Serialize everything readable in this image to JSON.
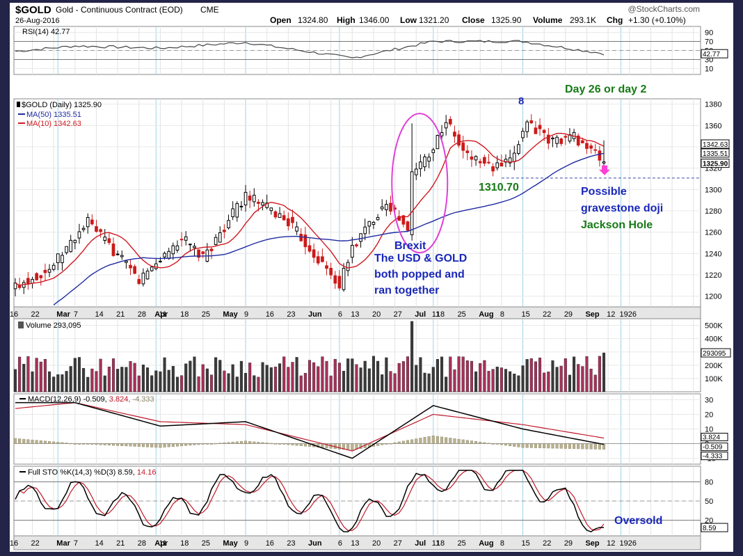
{
  "header": {
    "symbol": "$GOLD",
    "description": "Gold - Continuous Contract (EOD)",
    "exchange": "CME",
    "date": "26-Aug-2016",
    "open_label": "Open",
    "open": "1324.80",
    "high_label": "High",
    "high": "1346.00",
    "low_label": "Low",
    "low": "1321.20",
    "close_label": "Close",
    "close": "1325.90",
    "volume_label": "Volume",
    "volume": "293.1K",
    "chg_label": "Chg",
    "chg": "+1.30 (+0.10%)",
    "source": "@StockCharts.com"
  },
  "chart_data": [
    {
      "type": "line",
      "panel": "rsi",
      "title": "RSI(14) 42.77",
      "ticks": [
        "90",
        "70",
        "50",
        "30",
        "10"
      ],
      "ylim": [
        0,
        100
      ],
      "last_value_label": "42.77",
      "x": [
        "Feb 16",
        "Mar 7",
        "Apr 4",
        "May 2",
        "Jun 6",
        "Jul 1",
        "Aug 1",
        "Aug 26"
      ],
      "series": [
        {
          "values": [
            48,
            60,
            55,
            68,
            33,
            70,
            70,
            43
          ]
        }
      ]
    },
    {
      "type": "candlestick",
      "panel": "price",
      "title": "$GOLD (Daily) 1325.90",
      "ylim": [
        1190,
        1385
      ],
      "ticks": [
        "1380",
        "1360",
        "1340",
        "1320",
        "1300",
        "1280",
        "1260",
        "1240",
        "1220",
        "1200"
      ],
      "legend": [
        {
          "name": "MA(50) 1335.51",
          "color": "#1f2aa0"
        },
        {
          "name": "MA(10) 1342.63",
          "color": "#d0191f"
        }
      ],
      "price_labels": [
        "1342.63",
        "1335.51",
        "1325.90"
      ],
      "x_ticks": [
        "16",
        "22",
        "Mar",
        "7",
        "14",
        "21",
        "28",
        "Apr",
        "11",
        "18",
        "25",
        "May",
        "9",
        "16",
        "23",
        "Jun",
        "6",
        "13",
        "20",
        "27",
        "Jul",
        "11",
        "18",
        "25",
        "Aug",
        "8",
        "15",
        "22",
        "29",
        "Sep",
        "12",
        "19",
        "26"
      ],
      "month_ticks": [
        "Mar",
        "Apr",
        "May",
        "Jun",
        "Jul",
        "Aug",
        "Sep"
      ],
      "close_anchors": [
        {
          "date": "Feb 16",
          "close": 1210
        },
        {
          "date": "Feb 26",
          "close": 1225
        },
        {
          "date": "Mar 10",
          "close": 1270
        },
        {
          "date": "Mar 28",
          "close": 1215
        },
        {
          "date": "Apr 11",
          "close": 1255
        },
        {
          "date": "Apr 18",
          "close": 1235
        },
        {
          "date": "May 2",
          "close": 1295
        },
        {
          "date": "May 16",
          "close": 1270
        },
        {
          "date": "Jun 1",
          "close": 1210
        },
        {
          "date": "Jun 6",
          "close": 1245
        },
        {
          "date": "Jun 16",
          "close": 1290
        },
        {
          "date": "Jun 23",
          "close": 1260
        },
        {
          "date": "Jun 24",
          "close": 1315
        },
        {
          "date": "Jul 1",
          "close": 1340
        },
        {
          "date": "Jul 6",
          "close": 1365
        },
        {
          "date": "Jul 12",
          "close": 1335
        },
        {
          "date": "Jul 21",
          "close": 1320
        },
        {
          "date": "Jul 27",
          "close": 1325
        },
        {
          "date": "Aug 2",
          "close": 1365
        },
        {
          "date": "Aug 9",
          "close": 1345
        },
        {
          "date": "Aug 17",
          "close": 1350
        },
        {
          "date": "Aug 26",
          "close": 1325.9
        }
      ],
      "support_level": 1310.7,
      "annotations": [
        {
          "text": "Day 26 or day 2"
        },
        {
          "text": "8"
        },
        {
          "text": "1310.70"
        },
        {
          "text": "Possible"
        },
        {
          "text": "gravestone doji"
        },
        {
          "text": "Jackson Hole"
        },
        {
          "text": "Brexit"
        },
        {
          "text": "The USD & GOLD"
        },
        {
          "text": "both popped and"
        },
        {
          "text": "ran together"
        }
      ]
    },
    {
      "type": "bar",
      "panel": "volume",
      "title": "Volume 293,095",
      "ticks": [
        "500K",
        "400K",
        "300K",
        "200K",
        "100K"
      ],
      "ylim": [
        0,
        550000
      ],
      "last_value_label": "293095",
      "peak_volume": 530000,
      "last_volume": 293095
    },
    {
      "type": "line",
      "panel": "macd",
      "title": "MACD(12,26,9) -0.509, 3.824, -4.333",
      "title_parts": [
        "MACD(12,26,9)",
        "-0.509,",
        "3.824,",
        "-4.333"
      ],
      "ticks": [
        "30",
        "20",
        "10",
        "0",
        "-10"
      ],
      "ylim": [
        -14,
        34
      ],
      "value_labels": [
        "3.824",
        "-0.509",
        "-4.333"
      ],
      "x": [
        "Feb 16",
        "Mar 7",
        "Apr 4",
        "May 2",
        "Jun 6",
        "Jul 1",
        "Aug 1",
        "Aug 26"
      ],
      "series": [
        {
          "values": [
            28,
            28,
            12,
            15,
            -10,
            26,
            10,
            -0.509
          ]
        },
        {
          "values": [
            24,
            28,
            15,
            13,
            -5,
            20,
            13,
            3.824
          ]
        }
      ]
    },
    {
      "type": "line",
      "panel": "stochastic",
      "title": "Full STO %K(14,3) %D(3) 8.59, 14.16",
      "title_parts": [
        "Full STO %K(14,3) %D(3)",
        "8.59,",
        "14.16"
      ],
      "ticks": [
        "80",
        "50",
        "20"
      ],
      "ylim": [
        0,
        100
      ],
      "value_label": "8.59",
      "x": [
        "Feb 16",
        "Mar 7",
        "Apr 4",
        "May 2",
        "Jun 6",
        "Jul 1",
        "Aug 1",
        "Aug 26"
      ],
      "series": [
        {
          "values": [
            50,
            60,
            25,
            85,
            15,
            85,
            90,
            8.59
          ]
        },
        {
          "values": [
            55,
            58,
            30,
            80,
            20,
            80,
            85,
            14.16
          ]
        }
      ],
      "annotation": "Oversold"
    }
  ]
}
